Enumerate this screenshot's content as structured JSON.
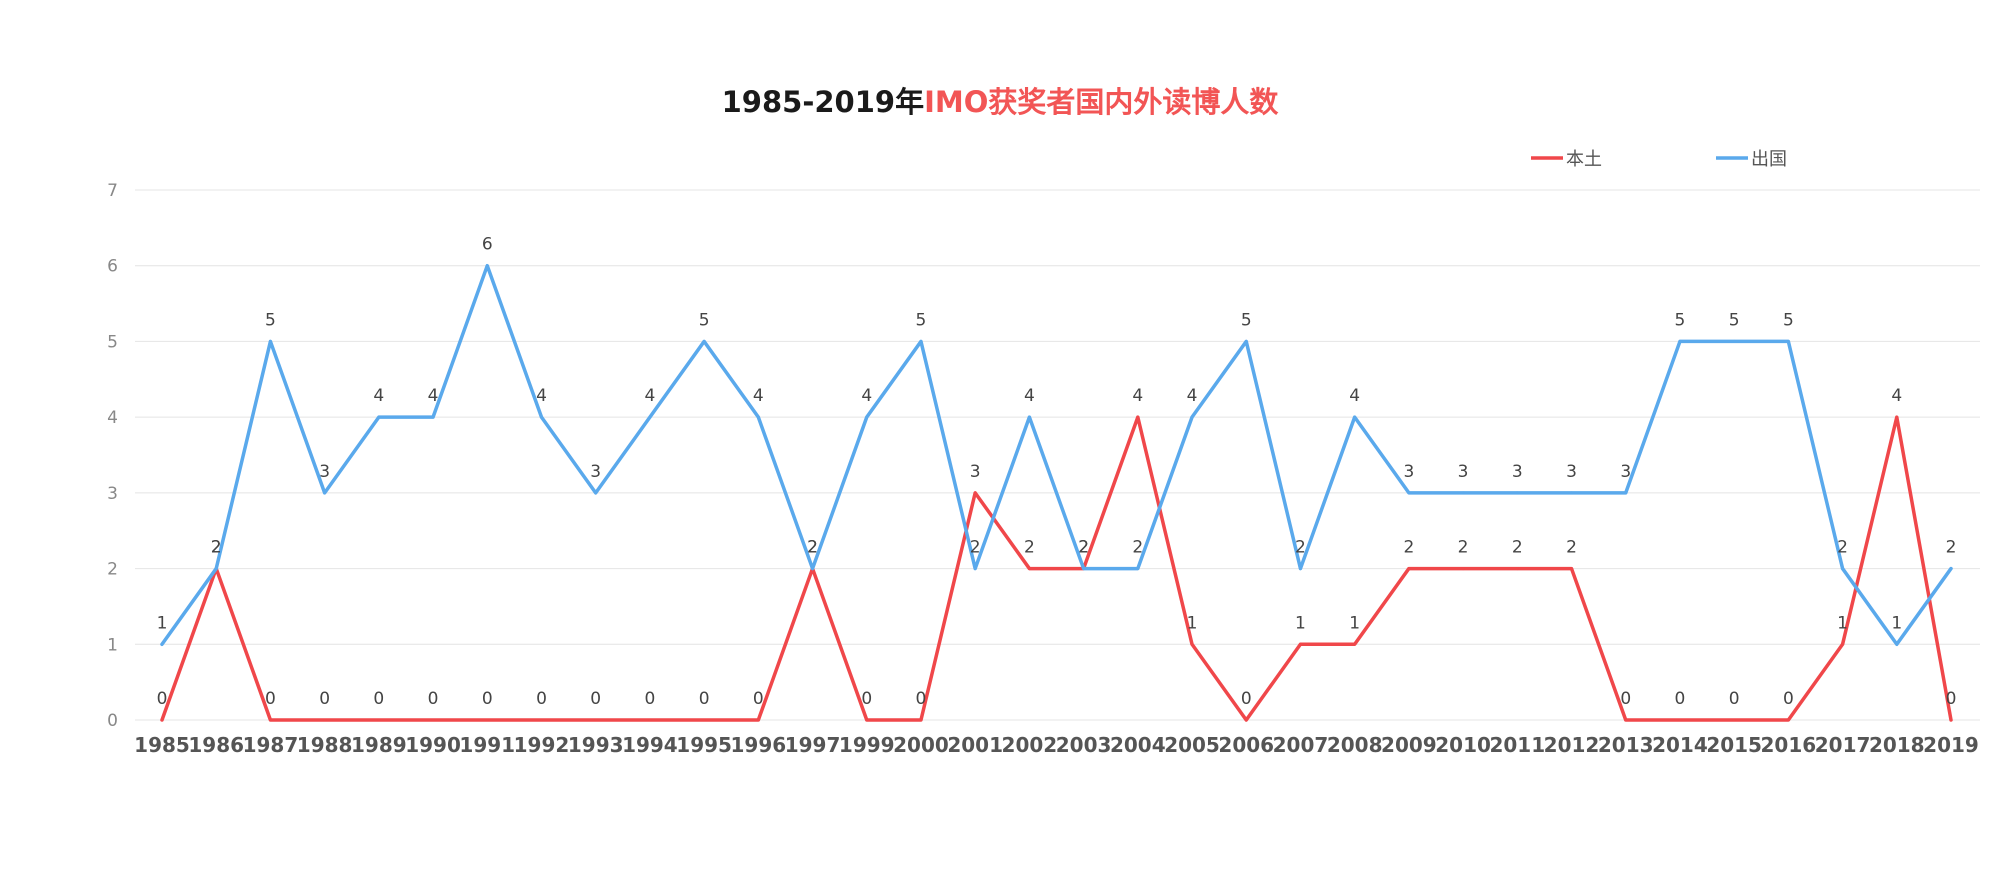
{
  "chart_data": {
    "type": "line",
    "title_part1": "1985-2019年",
    "title_part2": "IMO获奖者国内外读博人数",
    "xlabel": "",
    "ylabel": "",
    "ylim": [
      0,
      7
    ],
    "yticks": [
      0,
      1,
      2,
      3,
      4,
      5,
      6,
      7
    ],
    "grid": true,
    "legend_position": "top-right",
    "categories": [
      "1985",
      "1986",
      "1987",
      "1988",
      "1989",
      "1990",
      "1991",
      "1992",
      "1993",
      "1994",
      "1995",
      "1996",
      "1997",
      "1999",
      "2000",
      "2001",
      "2002",
      "2003",
      "2004",
      "2005",
      "2006",
      "2007",
      "2008",
      "2009",
      "2010",
      "2011",
      "2012",
      "2013",
      "2014",
      "2015",
      "2016",
      "2017",
      "2018",
      "2019"
    ],
    "series": [
      {
        "name": "本土",
        "color": "#f0474a",
        "values": [
          0,
          2,
          0,
          0,
          0,
          0,
          0,
          0,
          0,
          0,
          0,
          0,
          2,
          0,
          0,
          3,
          2,
          2,
          4,
          1,
          0,
          1,
          1,
          2,
          2,
          2,
          2,
          0,
          0,
          0,
          0,
          1,
          4,
          0
        ]
      },
      {
        "name": "出国",
        "color": "#5aa9ec",
        "values": [
          1,
          2,
          5,
          3,
          4,
          4,
          6,
          4,
          3,
          4,
          5,
          4,
          2,
          4,
          5,
          2,
          4,
          2,
          2,
          4,
          5,
          2,
          4,
          3,
          3,
          3,
          3,
          3,
          5,
          5,
          5,
          2,
          1,
          2
        ]
      }
    ]
  }
}
